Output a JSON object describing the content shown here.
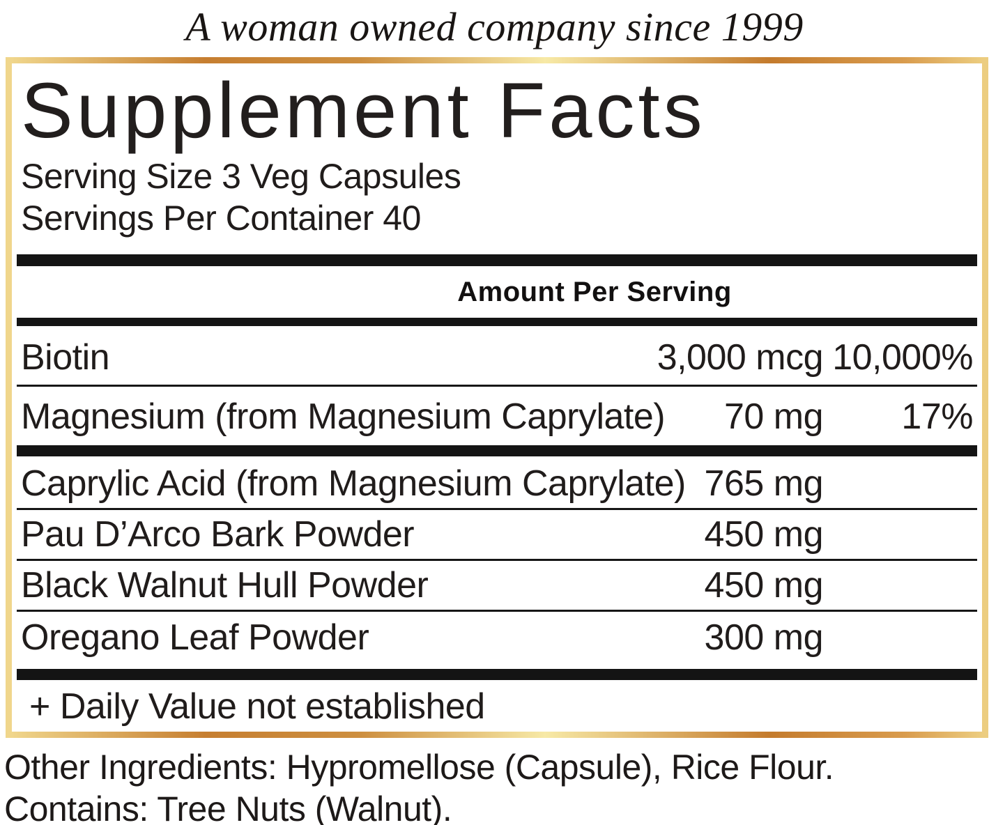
{
  "colors": {
    "text": "#201c1b",
    "rule_black": "#141414",
    "gold_border_left": "#f0d68c",
    "gold_border_orange": "#c67e30",
    "gold_border_highlight": "#f7e9a6",
    "gold_border_right": "#eccd80"
  },
  "tagline": "A woman owned company since 1999",
  "panel": {
    "title": "Supplement Facts",
    "serving_size": "Serving Size 3 Veg Capsules",
    "servings_per_container": "Servings Per Container 40",
    "amount_header": "Amount Per Serving",
    "rows": [
      {
        "name": "Biotin",
        "amount": "3,000 mcg",
        "dv": "10,000%",
        "separator_after": "thin"
      },
      {
        "name": "Magnesium (from Magnesium Caprylate)",
        "amount": "70 mg",
        "dv": "17%",
        "separator_after": "thick"
      },
      {
        "name": "Caprylic Acid (from Magnesium Caprylate)",
        "amount": "765 mg",
        "dv": "",
        "separator_after": "thin"
      },
      {
        "name": "Pau D’Arco Bark Powder",
        "amount": "450 mg",
        "dv": "",
        "separator_after": "thin"
      },
      {
        "name": "Black Walnut Hull Powder",
        "amount": "450 mg",
        "dv": "",
        "separator_after": "thin"
      },
      {
        "name": "Oregano Leaf Powder",
        "amount": "300 mg",
        "dv": "",
        "separator_after": "thick"
      }
    ],
    "footnote": "+ Daily Value not established"
  },
  "footer": {
    "other_ingredients": "Other Ingredients: Hypromellose (Capsule), Rice Flour.",
    "contains": "Contains: Tree Nuts (Walnut)."
  }
}
